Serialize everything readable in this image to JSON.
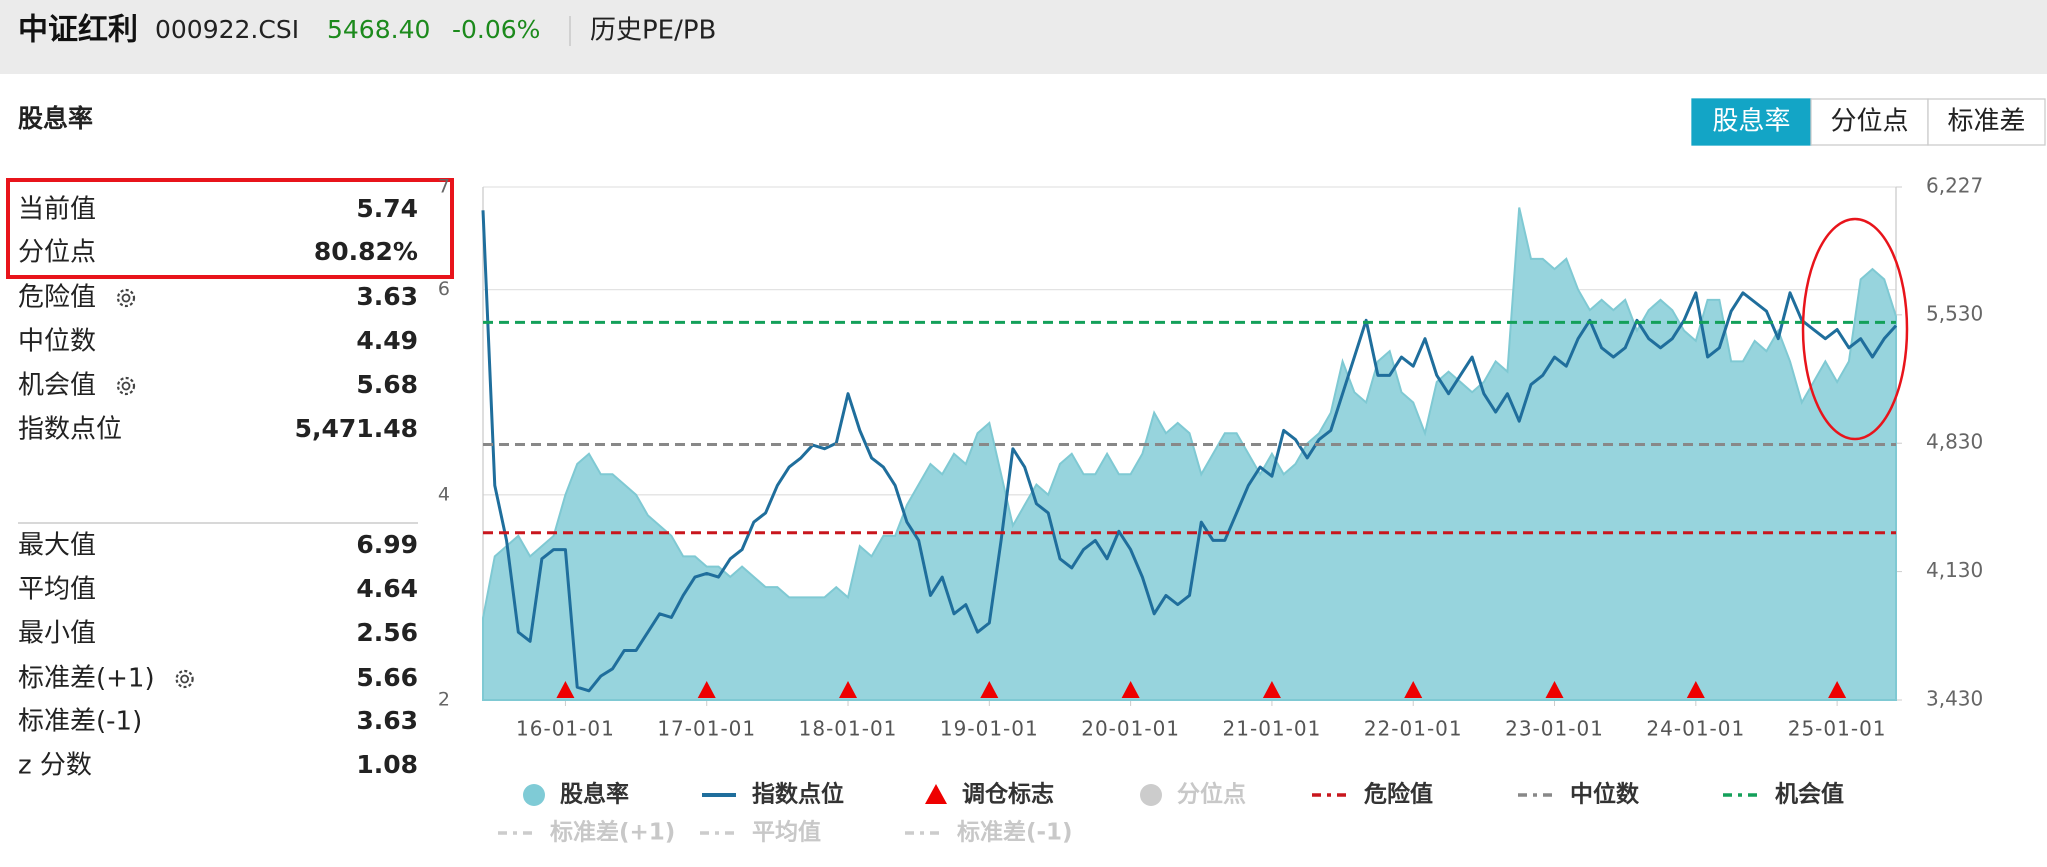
{
  "header": {
    "title": "中证红利",
    "code": "000922.CSI",
    "price": "5468.40",
    "change": "-0.06%",
    "link": "历史PE/PB"
  },
  "section_title": "股息率",
  "tabs": {
    "items": [
      "股息率",
      "分位点",
      "标准差"
    ],
    "active": 0
  },
  "stats_top": [
    {
      "label": "当前值",
      "value": "5.74"
    },
    {
      "label": "分位点",
      "value": "80.82%"
    },
    {
      "label": "危险值",
      "value": "3.63",
      "gear": true
    },
    {
      "label": "中位数",
      "value": "4.49"
    },
    {
      "label": "机会值",
      "value": "5.68",
      "gear": true
    },
    {
      "label": "指数点位",
      "value": "5,471.48"
    }
  ],
  "stats_bottom": [
    {
      "label": "最大值",
      "value": "6.99"
    },
    {
      "label": "平均值",
      "value": "4.64"
    },
    {
      "label": "最小值",
      "value": "2.56"
    },
    {
      "label": "标准差(+1)",
      "value": "5.66",
      "gear": true
    },
    {
      "label": "标准差(-1)",
      "value": "3.63"
    },
    {
      "label": "z 分数",
      "value": "1.08"
    }
  ],
  "chart_data": {
    "type": "line",
    "x": [
      "15-06-01",
      "15-07-01",
      "15-08-01",
      "15-09-01",
      "15-10-01",
      "15-11-01",
      "15-12-01",
      "16-01-01",
      "16-02-01",
      "16-03-01",
      "16-04-01",
      "16-05-01",
      "16-06-01",
      "16-07-01",
      "16-08-01",
      "16-09-01",
      "16-10-01",
      "16-11-01",
      "16-12-01",
      "17-01-01",
      "17-02-01",
      "17-03-01",
      "17-04-01",
      "17-05-01",
      "17-06-01",
      "17-07-01",
      "17-08-01",
      "17-09-01",
      "17-10-01",
      "17-11-01",
      "17-12-01",
      "18-01-01",
      "18-02-01",
      "18-03-01",
      "18-04-01",
      "18-05-01",
      "18-06-01",
      "18-07-01",
      "18-08-01",
      "18-09-01",
      "18-10-01",
      "18-11-01",
      "18-12-01",
      "19-01-01",
      "19-02-01",
      "19-03-01",
      "19-04-01",
      "19-05-01",
      "19-06-01",
      "19-07-01",
      "19-08-01",
      "19-09-01",
      "19-10-01",
      "19-11-01",
      "19-12-01",
      "20-01-01",
      "20-02-01",
      "20-03-01",
      "20-04-01",
      "20-05-01",
      "20-06-01",
      "20-07-01",
      "20-08-01",
      "20-09-01",
      "20-10-01",
      "20-11-01",
      "20-12-01",
      "21-01-01",
      "21-02-01",
      "21-03-01",
      "21-04-01",
      "21-05-01",
      "21-06-01",
      "21-07-01",
      "21-08-01",
      "21-09-01",
      "21-10-01",
      "21-11-01",
      "21-12-01",
      "22-01-01",
      "22-02-01",
      "22-03-01",
      "22-04-01",
      "22-05-01",
      "22-06-01",
      "22-07-01",
      "22-08-01",
      "22-09-01",
      "22-10-01",
      "22-11-01",
      "22-12-01",
      "23-01-01",
      "23-02-01",
      "23-03-01",
      "23-04-01",
      "23-05-01",
      "23-06-01",
      "23-07-01",
      "23-08-01",
      "23-09-01",
      "23-10-01",
      "23-11-01",
      "23-12-01",
      "24-01-01",
      "24-02-01",
      "24-03-01",
      "24-04-01",
      "24-05-01",
      "24-06-01",
      "24-07-01",
      "24-08-01",
      "24-09-01",
      "24-10-01",
      "24-11-01",
      "24-12-01",
      "25-01-01",
      "25-02-01",
      "25-03-01",
      "25-04-01",
      "25-05-01",
      "25-06-01"
    ],
    "series": [
      {
        "name": "股息率",
        "color": "#97d4dd",
        "kind": "area",
        "axis": "y",
        "values": [
          2.8,
          3.4,
          3.5,
          3.6,
          3.4,
          3.5,
          3.6,
          4.0,
          4.3,
          4.4,
          4.2,
          4.2,
          4.1,
          4.0,
          3.8,
          3.7,
          3.6,
          3.4,
          3.4,
          3.3,
          3.3,
          3.2,
          3.3,
          3.2,
          3.1,
          3.1,
          3.0,
          3.0,
          3.0,
          3.0,
          3.1,
          3.0,
          3.5,
          3.4,
          3.6,
          3.6,
          3.9,
          4.1,
          4.3,
          4.2,
          4.4,
          4.3,
          4.6,
          4.7,
          4.2,
          3.7,
          3.9,
          4.1,
          4.0,
          4.3,
          4.4,
          4.2,
          4.2,
          4.4,
          4.2,
          4.2,
          4.4,
          4.8,
          4.6,
          4.7,
          4.6,
          4.2,
          4.4,
          4.6,
          4.6,
          4.4,
          4.2,
          4.4,
          4.2,
          4.3,
          4.5,
          4.6,
          4.8,
          5.3,
          5.0,
          4.9,
          5.3,
          5.4,
          5.0,
          4.9,
          4.6,
          5.1,
          5.2,
          5.1,
          5.0,
          5.1,
          5.3,
          5.2,
          6.8,
          6.3,
          6.3,
          6.2,
          6.3,
          6.0,
          5.8,
          5.9,
          5.8,
          5.9,
          5.6,
          5.8,
          5.9,
          5.8,
          5.6,
          5.5,
          5.9,
          5.9,
          5.3,
          5.3,
          5.5,
          5.4,
          5.6,
          5.3,
          4.9,
          5.1,
          5.3,
          5.1,
          5.3,
          6.1,
          6.2,
          6.1,
          5.74
        ]
      },
      {
        "name": "指数点位",
        "color": "#1f6e9c",
        "kind": "line",
        "axis": "y2",
        "values": [
          6100,
          4600,
          4300,
          3800,
          3750,
          4200,
          4250,
          4250,
          3500,
          3480,
          3560,
          3600,
          3700,
          3700,
          3800,
          3900,
          3880,
          4000,
          4100,
          4120,
          4100,
          4200,
          4250,
          4400,
          4450,
          4600,
          4700,
          4750,
          4820,
          4800,
          4830,
          5100,
          4900,
          4750,
          4700,
          4600,
          4400,
          4300,
          4000,
          4100,
          3900,
          3950,
          3800,
          3850,
          4300,
          4800,
          4700,
          4500,
          4450,
          4200,
          4150,
          4250,
          4300,
          4200,
          4350,
          4250,
          4100,
          3900,
          4000,
          3950,
          4000,
          4400,
          4300,
          4300,
          4450,
          4600,
          4700,
          4650,
          4900,
          4850,
          4750,
          4850,
          4900,
          5100,
          5300,
          5500,
          5200,
          5200,
          5300,
          5250,
          5400,
          5200,
          5100,
          5200,
          5300,
          5100,
          5000,
          5100,
          4950,
          5150,
          5200,
          5300,
          5250,
          5400,
          5500,
          5350,
          5300,
          5350,
          5500,
          5400,
          5350,
          5400,
          5500,
          5650,
          5300,
          5350,
          5550,
          5650,
          5600,
          5550,
          5400,
          5650,
          5500,
          5450,
          5400,
          5450,
          5350,
          5400,
          5300,
          5400,
          5471.48
        ]
      }
    ],
    "rebalance": {
      "name": "调仓标志",
      "color": "#ee0000",
      "x": [
        "16-01-01",
        "17-01-01",
        "18-01-01",
        "19-01-01",
        "20-01-01",
        "21-01-01",
        "22-01-01",
        "23-01-01",
        "24-01-01",
        "25-01-01"
      ]
    },
    "ref_lines": [
      {
        "name": "危险值",
        "value": 3.63,
        "color": "#c8161d"
      },
      {
        "name": "中位数",
        "value": 4.49,
        "color": "#888888"
      },
      {
        "name": "机会值",
        "value": 5.68,
        "color": "#14a05a"
      }
    ],
    "xlim": [
      "15-06-01",
      "25-06-01"
    ],
    "xticks": [
      "16-01-01",
      "17-01-01",
      "18-01-01",
      "19-01-01",
      "20-01-01",
      "21-01-01",
      "22-01-01",
      "23-01-01",
      "24-01-01",
      "25-01-01"
    ],
    "ylim": [
      2,
      7
    ],
    "yticks": [
      2,
      4,
      6,
      7
    ],
    "y2lim": [
      3430,
      6227
    ],
    "y2ticks": [
      {
        "value": 3430,
        "label": "3,430"
      },
      {
        "value": 4130,
        "label": "4,130"
      },
      {
        "value": 4830,
        "label": "4,830"
      },
      {
        "value": 5530,
        "label": "5,530"
      },
      {
        "value": 6227,
        "label": "6,227"
      }
    ],
    "grid": true,
    "legend": [
      {
        "name": "股息率",
        "symbol": "circle",
        "color": "#7fcbd6"
      },
      {
        "name": "指数点位",
        "symbol": "line",
        "color": "#1f6e9c"
      },
      {
        "name": "调仓标志",
        "symbol": "triangle",
        "color": "#ee0000"
      },
      {
        "name": "分位点",
        "symbol": "circle",
        "color": "#cccccc",
        "hidden": true
      },
      {
        "name": "危险值",
        "symbol": "dash",
        "color": "#c8161d"
      },
      {
        "name": "中位数",
        "symbol": "dash",
        "color": "#888888"
      },
      {
        "name": "机会值",
        "symbol": "dash",
        "color": "#14a05a"
      },
      {
        "name": "标准差(+1)",
        "symbol": "dash",
        "color": "#cccccc",
        "hidden": true
      },
      {
        "name": "平均值",
        "symbol": "dash",
        "color": "#cccccc",
        "hidden": true
      },
      {
        "name": "标准差(-1)",
        "symbol": "dash",
        "color": "#cccccc",
        "hidden": true
      }
    ]
  }
}
